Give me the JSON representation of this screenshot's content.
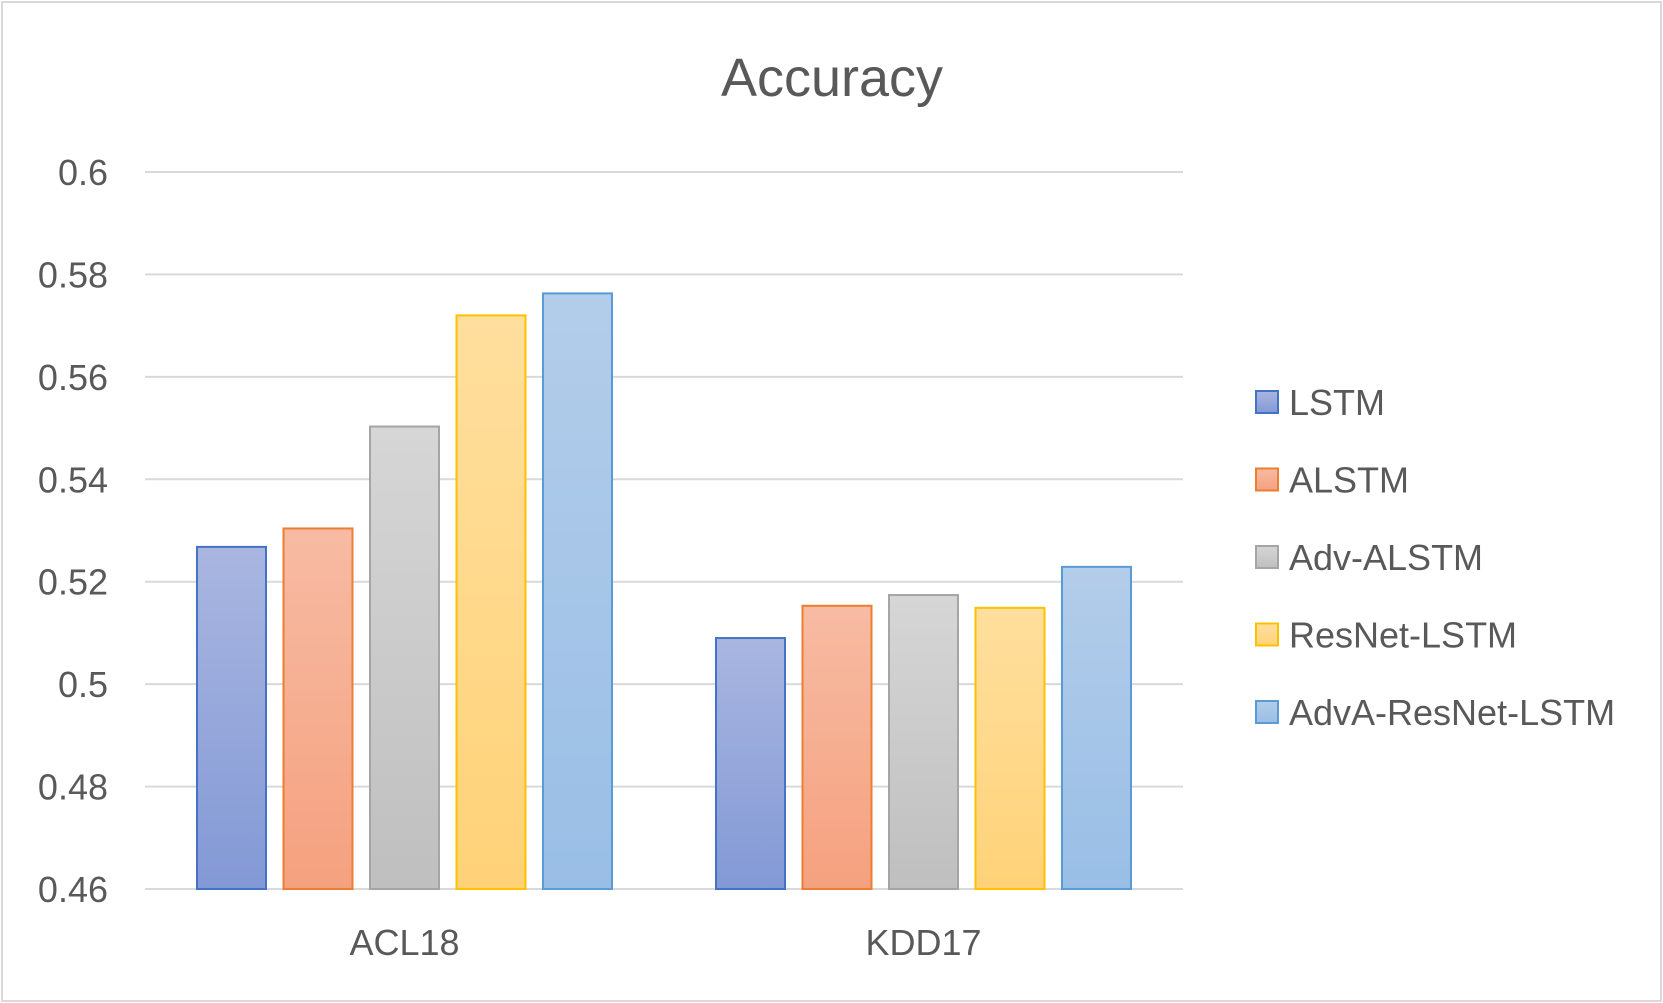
{
  "chart_data": {
    "type": "bar",
    "title": "Accuracy",
    "xlabel": "",
    "ylabel": "",
    "categories": [
      "ACL18",
      "KDD17"
    ],
    "ylim": [
      0.46,
      0.6
    ],
    "yticks": [
      "0.46",
      "0.48",
      "0.5",
      "0.52",
      "0.54",
      "0.56",
      "0.58",
      "0.6"
    ],
    "grid": true,
    "legend_position": "right",
    "series": [
      {
        "name": "LSTM",
        "values": [
          0.5268,
          0.509
        ],
        "color_top": "#a9b6e0",
        "color_bottom": "#8399d6",
        "stroke": "#4472c4"
      },
      {
        "name": "ALSTM",
        "values": [
          0.5304,
          0.5153
        ],
        "color_top": "#f7bba3",
        "color_bottom": "#f5a17f",
        "stroke": "#ed7d31"
      },
      {
        "name": "Adv-ALSTM",
        "values": [
          0.5503,
          0.5174
        ],
        "color_top": "#d6d6d6",
        "color_bottom": "#bfbfbf",
        "stroke": "#a5a5a5"
      },
      {
        "name": "ResNet-LSTM",
        "values": [
          0.572,
          0.5149
        ],
        "color_top": "#ffdf9e",
        "color_bottom": "#ffd278",
        "stroke": "#ffc000"
      },
      {
        "name": "AdvA-ResNet-LSTM",
        "values": [
          0.5763,
          0.5229
        ],
        "color_top": "#b3cdea",
        "color_bottom": "#99bee6",
        "stroke": "#5b9bd5"
      }
    ]
  }
}
